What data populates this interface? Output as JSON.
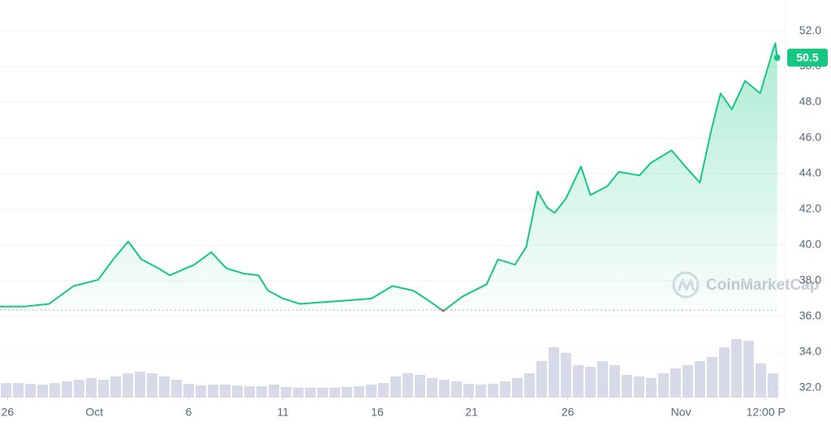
{
  "chart_data": {
    "type": "area-line",
    "x": [
      0,
      1.3,
      2.6,
      3.9,
      5.2,
      6.0,
      6.8,
      7.5,
      8.4,
      9.0,
      10.3,
      11.2,
      12.0,
      12.9,
      13.7,
      14.2,
      15.0,
      15.9,
      17.2,
      18.5,
      19.7,
      20.8,
      21.9,
      22.7,
      23.5,
      24.5,
      25.8,
      26.4,
      27.3,
      27.9,
      28.5,
      29.0,
      29.4,
      30.0,
      30.8,
      31.3,
      32.2,
      32.8,
      33.9,
      34.5,
      35.6,
      36.5,
      37.1,
      37.7,
      38.2,
      38.8,
      39.5,
      40.3,
      41.0,
      41.1,
      41.2
    ],
    "series": [
      {
        "color": "#16c784",
        "down_color": "#ea3943",
        "values": [
          36.55,
          36.55,
          36.7,
          37.7,
          38.05,
          39.2,
          40.2,
          39.2,
          38.7,
          38.3,
          38.9,
          39.6,
          38.7,
          38.4,
          38.3,
          37.45,
          37.0,
          36.7,
          36.8,
          36.9,
          37.0,
          37.7,
          37.45,
          36.9,
          36.3,
          37.1,
          37.8,
          39.2,
          38.9,
          39.9,
          43.0,
          42.1,
          41.8,
          42.6,
          44.4,
          42.8,
          43.3,
          44.1,
          43.9,
          44.6,
          45.3,
          44.2,
          43.5,
          46.4,
          48.5,
          47.6,
          49.2,
          48.5,
          51.0,
          51.3,
          50.5
        ]
      }
    ],
    "reference_line": 36.36,
    "last_value_label": "50.5",
    "volume": {
      "color": "#c8cbe0",
      "vlim": [
        0,
        100
      ],
      "values": [
        18,
        18,
        17,
        16,
        18,
        20,
        22,
        24,
        22,
        26,
        30,
        32,
        30,
        26,
        22,
        17,
        15,
        16,
        16,
        15,
        14,
        14,
        16,
        13,
        12,
        12,
        12,
        12,
        13,
        14,
        16,
        18,
        26,
        30,
        28,
        24,
        22,
        20,
        17,
        16,
        17,
        20,
        24,
        30,
        45,
        62,
        55,
        40,
        38,
        45,
        40,
        28,
        26,
        24,
        30,
        36,
        40,
        45,
        50,
        62,
        72,
        70,
        42,
        30
      ]
    },
    "xlim": [
      0,
      41.3
    ],
    "xticks": [
      {
        "value": 0.4,
        "label": "26"
      },
      {
        "value": 5,
        "label": "Oct"
      },
      {
        "value": 10,
        "label": "6"
      },
      {
        "value": 15,
        "label": "11"
      },
      {
        "value": 20,
        "label": "16"
      },
      {
        "value": 25,
        "label": "21"
      },
      {
        "value": 30.1,
        "label": "26"
      },
      {
        "value": 36.1,
        "label": "Nov"
      },
      {
        "value": 40.6,
        "label": "12:00 P"
      }
    ],
    "ylim": [
      31.45,
      53.73
    ],
    "yticks": [
      {
        "value": 32,
        "label": "32.0"
      },
      {
        "value": 34,
        "label": "34.0"
      },
      {
        "value": 36,
        "label": "36.0"
      },
      {
        "value": 38,
        "label": "38.0"
      },
      {
        "value": 40,
        "label": "40.0"
      },
      {
        "value": 42,
        "label": "42.0"
      },
      {
        "value": 44,
        "label": "44.0"
      },
      {
        "value": 46,
        "label": "46.0"
      },
      {
        "value": 48,
        "label": "48.0"
      },
      {
        "value": 50,
        "label": "50.0"
      },
      {
        "value": 52,
        "label": "52.0"
      }
    ],
    "grid": true,
    "watermark": "CoinMarketCap"
  }
}
